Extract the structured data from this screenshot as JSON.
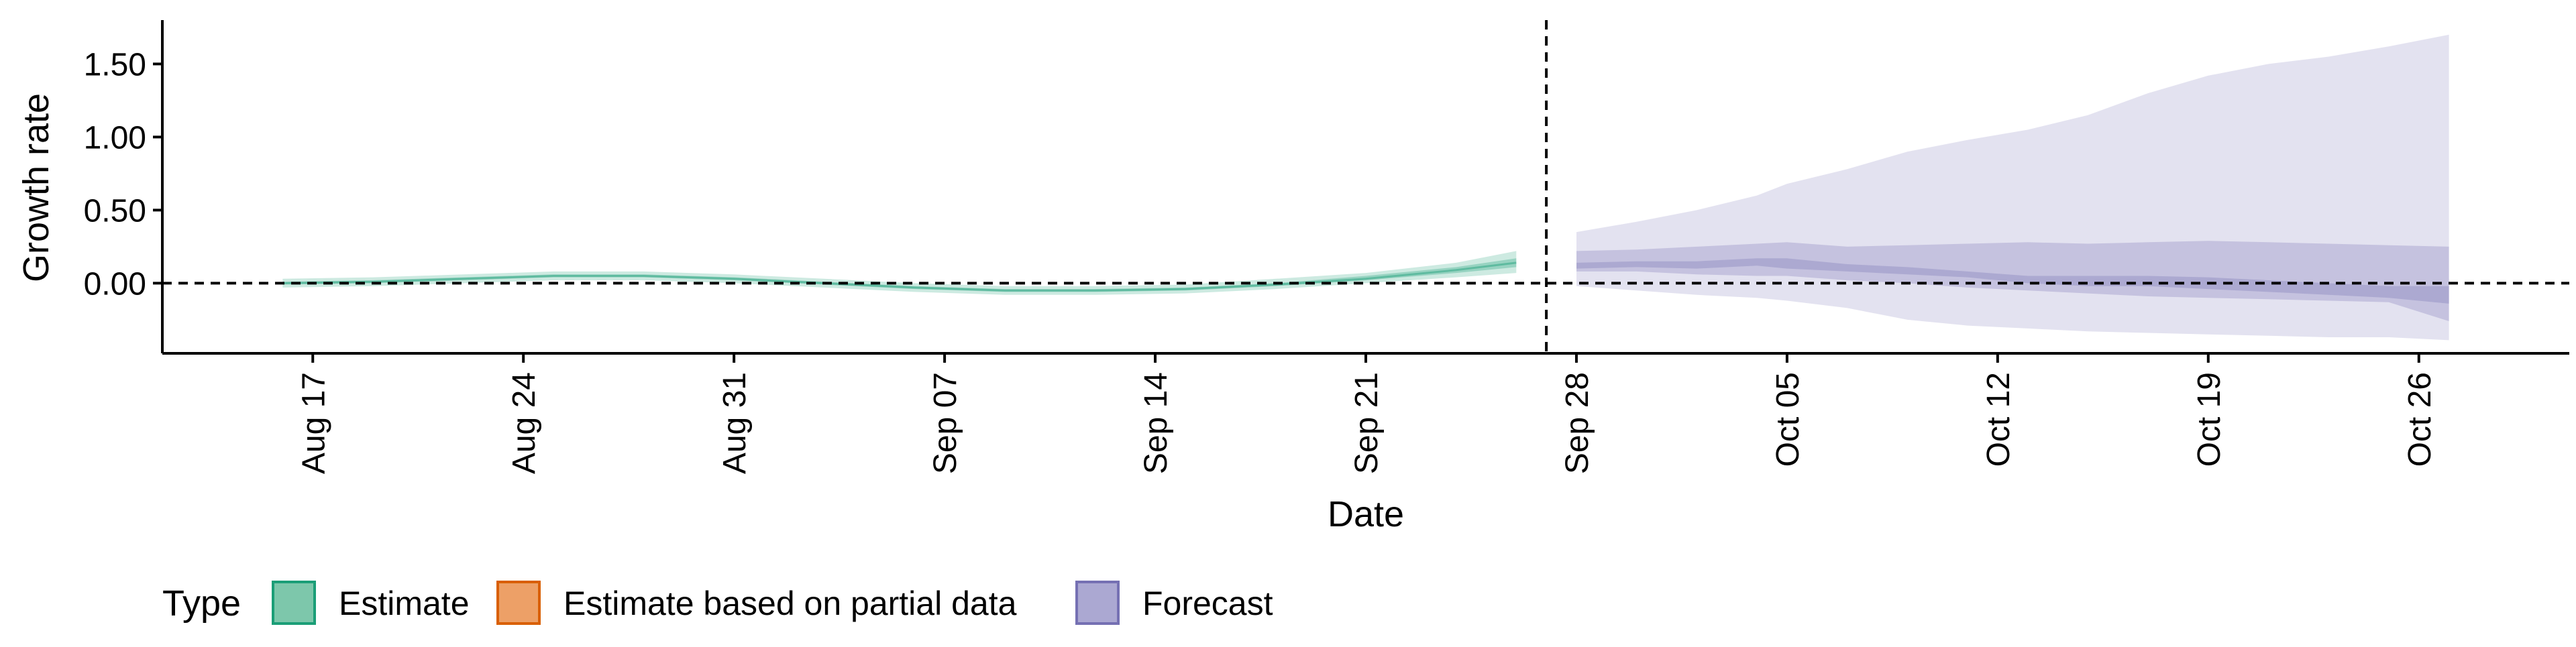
{
  "chart_data": {
    "type": "area",
    "xlabel": "Date",
    "ylabel": "Growth rate",
    "x_ticks": [
      "2020-08-17",
      "2020-08-24",
      "2020-08-31",
      "2020-09-07",
      "2020-09-14",
      "2020-09-21",
      "2020-09-28",
      "2020-10-05",
      "2020-10-12",
      "2020-10-19",
      "2020-10-26"
    ],
    "x_tick_labels": [
      "Aug 17",
      "Aug 24",
      "Aug 31",
      "Sep 07",
      "Sep 14",
      "Sep 21",
      "Sep 28",
      "Oct 05",
      "Oct 12",
      "Oct 19",
      "Oct 26"
    ],
    "xlim": [
      "2020-08-12",
      "2020-10-31"
    ],
    "y_ticks": [
      0,
      0.5,
      1,
      1.5
    ],
    "y_tick_labels": [
      "0.00",
      "0.50",
      "1.00",
      "1.50"
    ],
    "ylim": [
      -0.48,
      1.8
    ],
    "hline": 0,
    "vline_date": "2020-09-27",
    "grid": false,
    "legend": {
      "title": "Type",
      "position": "bottom-left",
      "entries": [
        {
          "label": "Estimate",
          "fill": "#7dc7ab",
          "stroke": "#1b9e77"
        },
        {
          "label": "Estimate based on partial data",
          "fill": "#eda067",
          "stroke": "#d95f02"
        },
        {
          "label": "Forecast",
          "fill": "#aba8d2",
          "stroke": "#7570b3"
        }
      ]
    },
    "series": [
      {
        "type": "Estimate",
        "color": "#1b9e77",
        "x": [
          "2020-08-16",
          "2020-08-19",
          "2020-08-22",
          "2020-08-25",
          "2020-08-28",
          "2020-08-31",
          "2020-09-03",
          "2020-09-06",
          "2020-09-09",
          "2020-09-12",
          "2020-09-15",
          "2020-09-18",
          "2020-09-21",
          "2020-09-24",
          "2020-09-26"
        ],
        "median": [
          0.0,
          0.01,
          0.03,
          0.05,
          0.05,
          0.03,
          0.0,
          -0.03,
          -0.05,
          -0.05,
          -0.04,
          -0.01,
          0.03,
          0.09,
          0.14
        ],
        "lower_50": [
          -0.01,
          0.0,
          0.02,
          0.04,
          0.04,
          0.02,
          -0.01,
          -0.04,
          -0.06,
          -0.06,
          -0.05,
          -0.02,
          0.02,
          0.07,
          0.11
        ],
        "upper_50": [
          0.01,
          0.02,
          0.04,
          0.06,
          0.06,
          0.04,
          0.01,
          -0.02,
          -0.04,
          -0.04,
          -0.03,
          0.0,
          0.05,
          0.11,
          0.17
        ],
        "lower_90": [
          -0.03,
          -0.02,
          0.0,
          0.02,
          0.02,
          0.0,
          -0.03,
          -0.06,
          -0.08,
          -0.08,
          -0.07,
          -0.04,
          0.0,
          0.04,
          0.07
        ],
        "upper_90": [
          0.03,
          0.04,
          0.06,
          0.08,
          0.08,
          0.06,
          0.03,
          0.0,
          -0.02,
          -0.02,
          -0.01,
          0.03,
          0.07,
          0.14,
          0.22
        ]
      },
      {
        "type": "Forecast",
        "color": "#7570b3",
        "x": [
          "2020-09-28",
          "2020-09-30",
          "2020-10-02",
          "2020-10-04",
          "2020-10-05",
          "2020-10-07",
          "2020-10-09",
          "2020-10-11",
          "2020-10-13",
          "2020-10-15",
          "2020-10-17",
          "2020-10-19",
          "2020-10-21",
          "2020-10-23",
          "2020-10-25",
          "2020-10-27"
        ],
        "lower_90": [
          -0.02,
          -0.05,
          -0.08,
          -0.1,
          -0.12,
          -0.17,
          -0.25,
          -0.29,
          -0.31,
          -0.33,
          -0.34,
          -0.35,
          -0.36,
          -0.37,
          -0.37,
          -0.39
        ],
        "lower_50": [
          0.08,
          0.08,
          0.06,
          0.05,
          0.05,
          0.02,
          0.0,
          -0.03,
          -0.05,
          -0.07,
          -0.09,
          -0.1,
          -0.11,
          -0.12,
          -0.13,
          -0.26
        ],
        "lower_20": [
          0.1,
          0.11,
          0.1,
          0.12,
          0.1,
          0.08,
          0.06,
          0.04,
          0.0,
          -0.02,
          -0.02,
          -0.04,
          -0.06,
          -0.08,
          -0.1,
          -0.14
        ],
        "upper_20": [
          0.14,
          0.15,
          0.15,
          0.17,
          0.17,
          0.13,
          0.11,
          0.08,
          0.05,
          0.05,
          0.05,
          0.04,
          0.02,
          0.0,
          -0.02,
          -0.02
        ],
        "upper_50": [
          0.22,
          0.23,
          0.25,
          0.27,
          0.28,
          0.25,
          0.26,
          0.27,
          0.28,
          0.27,
          0.28,
          0.29,
          0.28,
          0.27,
          0.26,
          0.25
        ],
        "upper_90": [
          0.35,
          0.42,
          0.5,
          0.6,
          0.68,
          0.78,
          0.9,
          0.98,
          1.05,
          1.15,
          1.3,
          1.42,
          1.5,
          1.55,
          1.62,
          1.7
        ]
      }
    ]
  }
}
